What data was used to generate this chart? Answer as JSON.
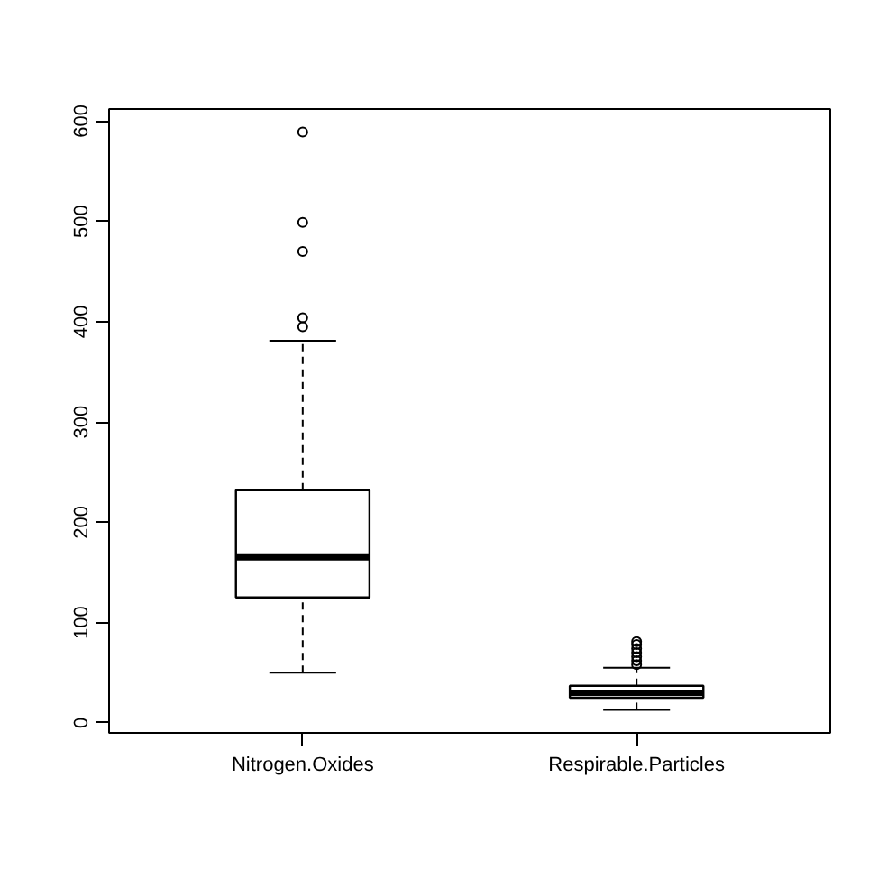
{
  "chart_data": {
    "type": "box",
    "categories": [
      "Nitrogen.Oxides",
      "Respirable.Particles"
    ],
    "boxes": [
      {
        "low": 50,
        "q1": 125,
        "median": 165,
        "q3": 232,
        "high": 381,
        "outliers": [
          395,
          404,
          470,
          499,
          589
        ]
      },
      {
        "low": 13,
        "q1": 25,
        "median": 30,
        "q3": 37,
        "high": 55,
        "outliers": [
          58,
          62,
          66,
          70,
          74,
          78,
          81
        ]
      }
    ],
    "color": "#000000",
    "ylim": [
      -10,
      612
    ],
    "yticks": [
      0,
      100,
      200,
      300,
      400,
      500,
      600
    ],
    "grid": false,
    "marker": "circle"
  }
}
